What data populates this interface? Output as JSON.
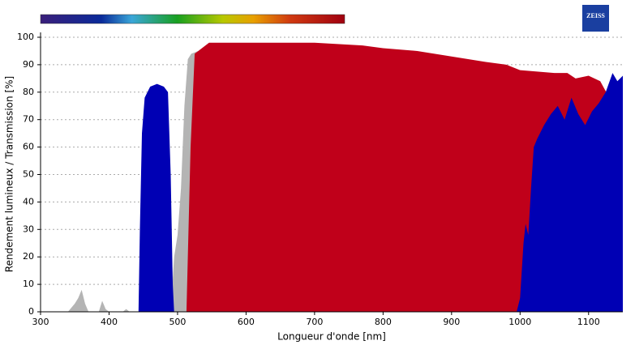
{
  "chart_data": {
    "type": "area",
    "logo": "ZEISS",
    "x_label": "Longueur d'onde [nm]",
    "y_label": "Rendement lumineux / Transmission [%]",
    "xlim": [
      300,
      1150
    ],
    "ylim": [
      0,
      100
    ],
    "xticks": [
      300,
      400,
      500,
      600,
      700,
      800,
      900,
      1000,
      1100
    ],
    "yticks": [
      0,
      10,
      20,
      30,
      40,
      50,
      60,
      70,
      80,
      90,
      100
    ],
    "grid": true,
    "series": [
      {
        "color": "#b4b4b4",
        "x": [
          340,
          350,
          355,
          360,
          365,
          370,
          385,
          390,
          395,
          400,
          420,
          425,
          430,
          490,
          495,
          500,
          505,
          510,
          515,
          520,
          530
        ],
        "values": [
          0,
          3,
          5,
          8,
          3,
          0,
          0,
          4,
          1,
          0,
          0,
          1,
          0,
          0,
          20,
          28,
          45,
          75,
          92,
          94,
          95
        ]
      },
      {
        "color": "#c0001a",
        "x": [
          513,
          519,
          525,
          546,
          600,
          700,
          770,
          800,
          850,
          900,
          950,
          980,
          1000,
          1050,
          1069,
          1081,
          1100,
          1117,
          1128,
          1134,
          1150
        ],
        "values": [
          0,
          60,
          94,
          98,
          98,
          98,
          97,
          96,
          95,
          93,
          91,
          90,
          88,
          87,
          87,
          85,
          86,
          84,
          79,
          81,
          84
        ]
      },
      {
        "color": "#0000b4",
        "x": [
          443,
          445,
          448,
          452,
          460,
          470,
          480,
          486,
          490,
          493,
          495,
          500,
          995,
          1000,
          1005,
          1008,
          1012,
          1016,
          1020,
          1025,
          1035,
          1045,
          1055,
          1065,
          1075,
          1085,
          1095,
          1105,
          1115,
          1125,
          1135,
          1142,
          1150
        ],
        "values": [
          0,
          30,
          65,
          78,
          82,
          83,
          82,
          80,
          50,
          10,
          0,
          null,
          0,
          5,
          25,
          32,
          28,
          45,
          60,
          63,
          68,
          72,
          75,
          70,
          78,
          72,
          68,
          73,
          76,
          80,
          87,
          84,
          86
        ]
      }
    ]
  }
}
